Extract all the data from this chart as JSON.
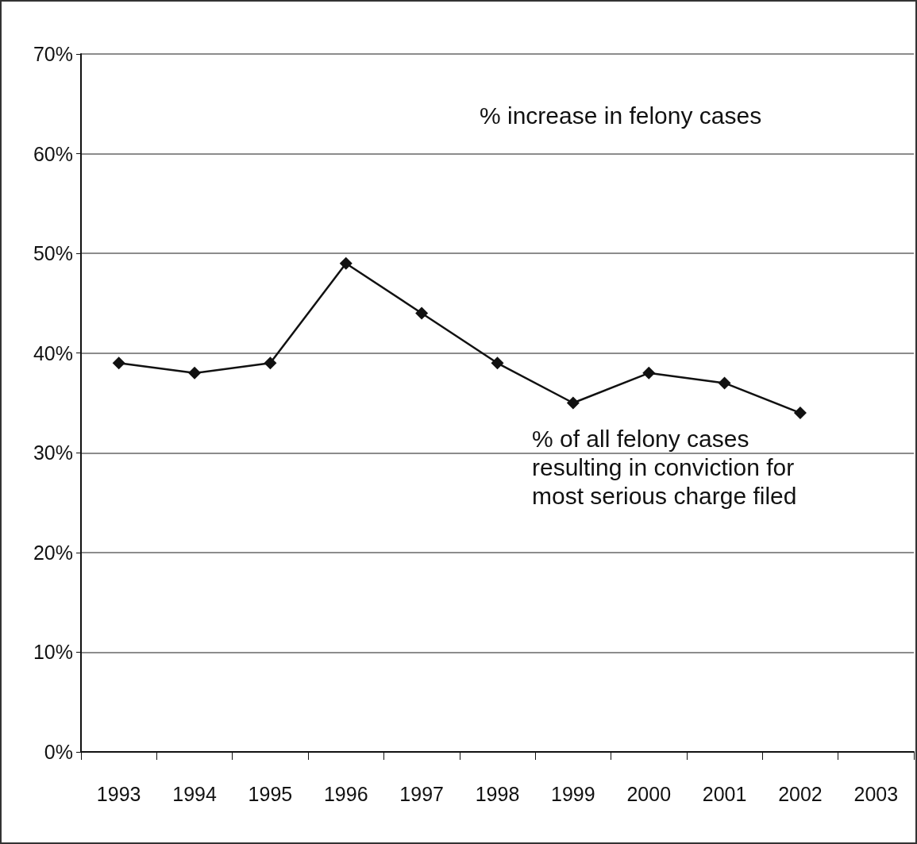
{
  "chart_data": {
    "type": "line",
    "categories": [
      "1993",
      "1994",
      "1995",
      "1996",
      "1997",
      "1998",
      "1999",
      "2000",
      "2001",
      "2002",
      "2003"
    ],
    "series": [
      {
        "color": "#111111",
        "values": [
          39,
          38,
          39,
          49,
          44,
          39,
          35,
          38,
          37,
          34,
          null
        ]
      }
    ],
    "ylim": [
      0,
      70
    ],
    "yticks": [
      {
        "value": 0,
        "label": "0%"
      },
      {
        "value": 10,
        "label": "10%"
      },
      {
        "value": 20,
        "label": "20%"
      },
      {
        "value": 30,
        "label": "30%"
      },
      {
        "value": 40,
        "label": "40%"
      },
      {
        "value": 50,
        "label": "50%"
      },
      {
        "value": 60,
        "label": "60%"
      },
      {
        "value": 70,
        "label": "70%"
      }
    ],
    "grid": "y",
    "marker": "diamond",
    "line_style": "solid",
    "annotations": [
      "% increase in felony cases",
      "% of all felony cases\nresulting in conviction for\nmost serious charge filed"
    ]
  }
}
